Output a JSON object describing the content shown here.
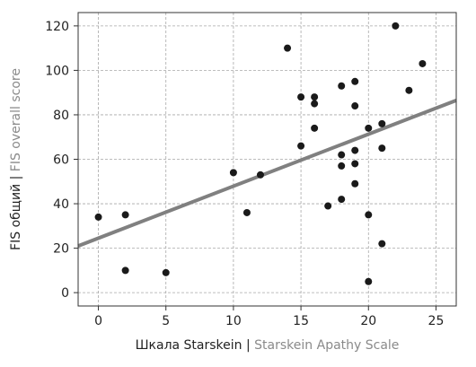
{
  "chart_data": {
    "type": "scatter",
    "title": "",
    "xlabel": {
      "main": "Шкала Starskein",
      "separator": " | ",
      "sub": "Starskein Apathy Scale"
    },
    "ylabel": {
      "main": "FIS общий",
      "separator": " | ",
      "sub": "FIS overall score"
    },
    "xlim": [
      -1.5,
      26.5
    ],
    "ylim": [
      -6,
      126
    ],
    "xticks": [
      0,
      5,
      10,
      15,
      20,
      25
    ],
    "yticks": [
      0,
      20,
      40,
      60,
      80,
      100,
      120
    ],
    "grid": true,
    "point_color": "#1a1a1a",
    "line_color": "#808080",
    "trendline": {
      "x": [
        -1.5,
        26.5
      ],
      "y": [
        21,
        86.5
      ]
    },
    "points": [
      {
        "x": 0,
        "y": 34
      },
      {
        "x": 2,
        "y": 35
      },
      {
        "x": 2,
        "y": 10
      },
      {
        "x": 5,
        "y": 9
      },
      {
        "x": 10,
        "y": 54
      },
      {
        "x": 11,
        "y": 36
      },
      {
        "x": 12,
        "y": 53
      },
      {
        "x": 14,
        "y": 110
      },
      {
        "x": 15,
        "y": 88
      },
      {
        "x": 15,
        "y": 66
      },
      {
        "x": 16,
        "y": 88
      },
      {
        "x": 16,
        "y": 85
      },
      {
        "x": 16,
        "y": 74
      },
      {
        "x": 17,
        "y": 39
      },
      {
        "x": 18,
        "y": 93
      },
      {
        "x": 18,
        "y": 62
      },
      {
        "x": 18,
        "y": 57
      },
      {
        "x": 18,
        "y": 42
      },
      {
        "x": 19,
        "y": 95
      },
      {
        "x": 19,
        "y": 84
      },
      {
        "x": 19,
        "y": 64
      },
      {
        "x": 19,
        "y": 58
      },
      {
        "x": 19,
        "y": 49
      },
      {
        "x": 20,
        "y": 74
      },
      {
        "x": 20,
        "y": 35
      },
      {
        "x": 20,
        "y": 5
      },
      {
        "x": 21,
        "y": 76
      },
      {
        "x": 21,
        "y": 65
      },
      {
        "x": 21,
        "y": 22
      },
      {
        "x": 22,
        "y": 120
      },
      {
        "x": 23,
        "y": 91
      },
      {
        "x": 24,
        "y": 103
      }
    ]
  }
}
